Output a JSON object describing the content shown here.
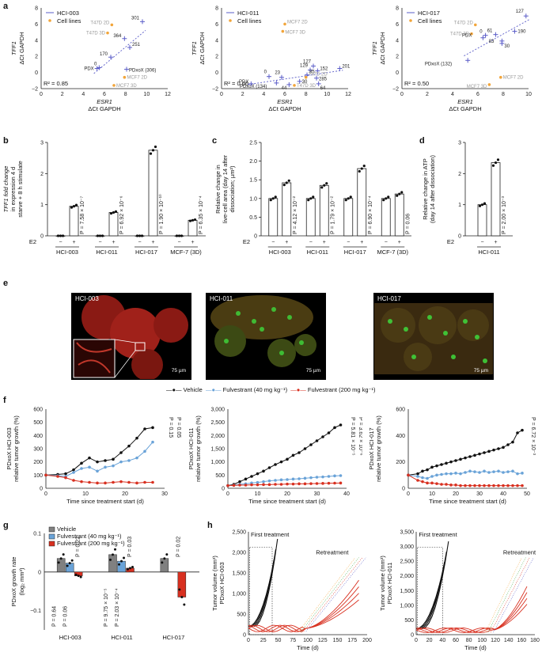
{
  "panels": {
    "a": "a",
    "b": "b",
    "c": "c",
    "d": "d",
    "e": "e",
    "f": "f",
    "g": "g",
    "h": "h"
  },
  "colors": {
    "blue": "#5a5cc8",
    "orange": "#f2a53a",
    "black": "#111111",
    "lightblue": "#6aa3d8",
    "red": "#d83020",
    "grey": "#808080",
    "green_cell": "#3fd03a",
    "red_cell": "#d2322a"
  },
  "panel_a": [
    {
      "legend_series": "HCI-003",
      "legend_cells": "Cell lines",
      "r2": "R² = 0.85",
      "xlabel": "ESR1",
      "xsub": "ΔCt GAPDH",
      "ylabel": "TFF1",
      "ysub": "ΔCt GAPDH",
      "xticks": [
        "0",
        "2",
        "4",
        "6",
        "8",
        "10",
        "12"
      ],
      "yticks": [
        "−2",
        "0",
        "2",
        "4",
        "6",
        "8"
      ],
      "points": [
        {
          "t": "301"
        },
        {
          "t": "364"
        },
        {
          "t": "251"
        },
        {
          "t": "170"
        },
        {
          "t": "0"
        },
        {
          "t": "PDX"
        },
        {
          "t": "PDxoX (306)"
        },
        {
          "t": "T47D 2D"
        },
        {
          "t": "T47D 3D"
        },
        {
          "t": "MCF7 2D"
        },
        {
          "t": "MCF7 3D"
        }
      ]
    },
    {
      "legend_series": "HCI-011",
      "legend_cells": "Cell lines",
      "r2": "R² = 0.66",
      "xlabel": "ESR1",
      "xsub": "ΔCt GAPDH",
      "ylabel": "TFF1",
      "ysub": "ΔCt GAPDH",
      "xticks": [
        "0",
        "2",
        "4",
        "6",
        "8",
        "10",
        "12"
      ],
      "yticks": [
        "−2",
        "0",
        "2",
        "4",
        "6",
        "8"
      ],
      "points": [
        {
          "t": "127"
        },
        {
          "t": "129"
        },
        {
          "t": "152"
        },
        {
          "t": "201"
        },
        {
          "t": "23"
        },
        {
          "t": "0"
        },
        {
          "t": "PDX"
        },
        {
          "t": "PDxoX (134)"
        },
        {
          "t": "30"
        },
        {
          "t": "44"
        },
        {
          "t": "64"
        },
        {
          "t": "285"
        },
        {
          "t": "85"
        },
        {
          "t": "MCF7 2D"
        },
        {
          "t": "MCF7 3D"
        },
        {
          "t": "T47D 2D"
        },
        {
          "t": "T47D 3D"
        }
      ]
    },
    {
      "legend_series": "HCI-017",
      "legend_cells": "Cell lines",
      "r2": "R² = 0.50",
      "xlabel": "ESR1",
      "xsub": "ΔCt GAPDH",
      "ylabel": "TFF1",
      "ysub": "ΔCt GAPDH",
      "xticks": [
        "0",
        "2",
        "4",
        "6",
        "8",
        "10"
      ],
      "yticks": [
        "−2",
        "0",
        "2",
        "4",
        "6",
        "8"
      ],
      "points": [
        {
          "t": "127"
        },
        {
          "t": "190"
        },
        {
          "t": "61"
        },
        {
          "t": "0"
        },
        {
          "t": "PDX"
        },
        {
          "t": "83"
        },
        {
          "t": "30"
        },
        {
          "t": "PDxoX (132)"
        },
        {
          "t": "T47D 2D"
        },
        {
          "t": "T47D 3D"
        },
        {
          "t": "MCF7 2D"
        },
        {
          "t": "MCF7 3D"
        }
      ]
    }
  ],
  "chart_data": [
    {
      "type": "scatter",
      "title": "",
      "series_name": "HCI-003",
      "xlabel": "ESR1 ΔCt GAPDH",
      "ylabel": "TFF1 ΔCt GAPDH",
      "xlim": [
        0,
        12
      ],
      "ylim": [
        -2,
        8
      ],
      "points": [
        [
          9.6,
          6.3
        ],
        [
          7.9,
          4.2
        ],
        [
          8.4,
          3.1
        ],
        [
          6.6,
          1.9
        ],
        [
          5.5,
          0.6
        ],
        [
          5.3,
          0.5
        ],
        [
          8.1,
          0.4
        ]
      ],
      "cell_lines": [
        [
          6.7,
          5.9
        ],
        [
          6.3,
          4.9
        ],
        [
          7.9,
          -0.6
        ],
        [
          6.9,
          -1.6
        ]
      ],
      "r2": 0.85
    },
    {
      "type": "scatter",
      "title": "",
      "series_name": "HCI-011",
      "xlabel": "ESR1 ΔCt GAPDH",
      "ylabel": "TFF1 ΔCt GAPDH",
      "xlim": [
        0,
        12
      ],
      "ylim": [
        -2,
        8
      ],
      "points": [
        [
          8.7,
          0.8
        ],
        [
          8.4,
          0.3
        ],
        [
          9.1,
          0.2
        ],
        [
          11.2,
          0.5
        ],
        [
          5.7,
          -0.6
        ],
        [
          4.5,
          -0.5
        ],
        [
          2.8,
          -1.4
        ],
        [
          5.2,
          -1.3
        ],
        [
          7.4,
          -1.1
        ],
        [
          6.4,
          -1.5
        ],
        [
          9.2,
          -1.4
        ],
        [
          9.0,
          -0.7
        ],
        [
          8.1,
          -0.3
        ]
      ],
      "cell_lines": [
        [
          6.0,
          6.0
        ],
        [
          5.8,
          5.1
        ],
        [
          8.0,
          -0.6
        ],
        [
          6.9,
          -1.6
        ]
      ],
      "r2": 0.66
    },
    {
      "type": "scatter",
      "title": "",
      "series_name": "HCI-017",
      "xlabel": "ESR1 ΔCt GAPDH",
      "ylabel": "TFF1 ΔCt GAPDH",
      "xlim": [
        0,
        10
      ],
      "ylim": [
        -2,
        8
      ],
      "points": [
        [
          9.8,
          7.0
        ],
        [
          8.9,
          5.1
        ],
        [
          7.4,
          4.7
        ],
        [
          6.6,
          4.6
        ],
        [
          6.4,
          4.3
        ],
        [
          7.9,
          3.9
        ],
        [
          7.9,
          3.6
        ],
        [
          5.2,
          1.5
        ]
      ],
      "cell_lines": [
        [
          5.8,
          5.9
        ],
        [
          5.5,
          4.8
        ],
        [
          7.8,
          -0.6
        ],
        [
          6.9,
          -1.5
        ]
      ],
      "r2": 0.5
    },
    {
      "type": "bar",
      "title": "",
      "ylabel": "TFF1 fold change in expression 4 d starve + 8 h stimulate",
      "ylim": [
        0,
        3
      ],
      "yticks": [
        "0",
        "1",
        "2",
        "3"
      ],
      "groups": [
        "HCI-003",
        "HCI-011",
        "HCI-017",
        "MCF-7 (3D)"
      ],
      "e2": [
        "−",
        "+"
      ],
      "values": [
        [
          0,
          0.95
        ],
        [
          0,
          0.75
        ],
        [
          0,
          2.75
        ],
        [
          0,
          0.5
        ]
      ],
      "pvalues": [
        "P = 7.58 × 10⁻⁷",
        "P = 6.92 × 10⁻⁶",
        "P = 1.90 × 10⁻¹⁰",
        "P = 6.35 × 10⁻⁴"
      ]
    },
    {
      "type": "bar",
      "title": "",
      "ylabel": "Relative change in live-cell area (day 14 after dissociation; µm²)",
      "ylim": [
        0,
        2.5
      ],
      "yticks": [
        "0",
        "0.5",
        "1.0",
        "1.5",
        "2.0",
        "2.5"
      ],
      "groups": [
        "HCI-003",
        "HCI-011",
        "HCI-017",
        "MCF-7 (3D)"
      ],
      "e2": [
        "−",
        "+"
      ],
      "values": [
        [
          1.0,
          1.42
        ],
        [
          1.0,
          1.35
        ],
        [
          1.0,
          1.8
        ],
        [
          1.0,
          1.12
        ]
      ],
      "pvalues": [
        "P = 4.12 × 10⁻²",
        "P = 1.79 × 10⁻²",
        "P = 6.90 × 10⁻⁴",
        "P = 0.06"
      ]
    },
    {
      "type": "bar",
      "title": "",
      "ylabel": "Relative change in ATP (day 14 after dissociation)",
      "ylim": [
        0,
        3
      ],
      "yticks": [
        "0",
        "1",
        "2",
        "3"
      ],
      "groups": [
        "HCI-011"
      ],
      "e2": [
        "−",
        "+"
      ],
      "values": [
        [
          1.0,
          2.35
        ]
      ],
      "pvalues": [
        "P = 2.00 × 10⁻³"
      ]
    },
    {
      "type": "line",
      "title": "",
      "ylabel": "PDxoX HCI-003 relative tumor growth (%)",
      "xlabel": "Time since treatment start (d)",
      "xlim": [
        0,
        30
      ],
      "ylim": [
        0,
        600
      ],
      "xticks": [
        "0",
        "10",
        "20",
        "30"
      ],
      "yticks": [
        "0",
        "100",
        "200",
        "300",
        "400",
        "500",
        "600"
      ],
      "x": [
        0,
        3,
        5,
        7,
        9,
        11,
        13,
        15,
        17,
        19,
        21,
        23,
        25,
        27
      ],
      "series": [
        {
          "name": "Vehicle",
          "values": [
            100,
            105,
            110,
            140,
            190,
            230,
            200,
            210,
            220,
            270,
            320,
            380,
            450,
            460
          ]
        },
        {
          "name": "Fulvestrant (40 mg kg⁻¹)",
          "values": [
            100,
            95,
            90,
            120,
            150,
            160,
            130,
            160,
            170,
            200,
            210,
            230,
            280,
            350
          ]
        },
        {
          "name": "Fulvestrant (200 mg kg⁻¹)",
          "values": [
            100,
            90,
            80,
            60,
            50,
            45,
            40,
            40,
            45,
            50,
            45,
            40,
            45,
            45
          ]
        }
      ],
      "pvalues": [
        "P = 0.15",
        "P = 0.05"
      ]
    },
    {
      "type": "line",
      "title": "",
      "ylabel": "PDxoX HCI-011 relative tumor growth (%)",
      "xlabel": "Time since treatment start (d)",
      "xlim": [
        0,
        40
      ],
      "ylim": [
        0,
        3000
      ],
      "xticks": [
        "0",
        "10",
        "20",
        "30",
        "40"
      ],
      "yticks": [
        "0",
        "500",
        "1,000",
        "1,500",
        "2,000",
        "2,500",
        "3,000"
      ],
      "x": [
        0,
        2,
        4,
        6,
        8,
        10,
        12,
        14,
        16,
        18,
        20,
        22,
        24,
        26,
        28,
        30,
        32,
        34,
        36,
        38
      ],
      "series": [
        {
          "name": "Vehicle",
          "values": [
            100,
            150,
            250,
            350,
            450,
            550,
            650,
            780,
            900,
            1000,
            1100,
            1250,
            1350,
            1500,
            1650,
            1800,
            1950,
            2100,
            2300,
            2400
          ]
        },
        {
          "name": "Fulvestrant (40 mg kg⁻¹)",
          "values": [
            100,
            120,
            150,
            170,
            200,
            220,
            250,
            280,
            300,
            320,
            330,
            350,
            360,
            380,
            400,
            420,
            430,
            450,
            470,
            480
          ]
        },
        {
          "name": "Fulvestrant (200 mg kg⁻¹)",
          "values": [
            100,
            110,
            120,
            120,
            130,
            130,
            140,
            140,
            150,
            150,
            160,
            160,
            170,
            170,
            175,
            180,
            185,
            190,
            195,
            200
          ]
        }
      ],
      "pvalues": [
        "P = 5.81 × 10⁻⁵",
        "P = 3.62 × 10⁻⁶"
      ]
    },
    {
      "type": "line",
      "title": "",
      "ylabel": "PDxoX HCI-017 relative tumor growth (%)",
      "xlabel": "Time since treatment start (d)",
      "xlim": [
        0,
        50
      ],
      "ylim": [
        0,
        600
      ],
      "xticks": [
        "0",
        "10",
        "20",
        "30",
        "40",
        "50"
      ],
      "yticks": [
        "0",
        "200",
        "400",
        "600"
      ],
      "x": [
        0,
        4,
        6,
        8,
        10,
        12,
        14,
        16,
        18,
        20,
        22,
        24,
        26,
        28,
        30,
        32,
        34,
        36,
        38,
        40,
        42,
        44,
        46,
        48
      ],
      "series": [
        {
          "name": "Vehicle",
          "values": [
            100,
            110,
            130,
            140,
            160,
            170,
            180,
            190,
            200,
            210,
            220,
            230,
            240,
            250,
            260,
            270,
            280,
            290,
            300,
            310,
            330,
            350,
            420,
            440
          ]
        },
        {
          "name": "Fulvestrant (40 mg kg⁻¹)",
          "values": [
            100,
            90,
            80,
            75,
            90,
            100,
            105,
            110,
            110,
            115,
            110,
            120,
            130,
            125,
            120,
            130,
            120,
            125,
            130,
            120,
            125,
            130,
            110,
            115
          ]
        },
        {
          "name": "Fulvestrant (200 mg kg⁻¹)",
          "values": [
            100,
            60,
            50,
            40,
            40,
            35,
            30,
            30,
            25,
            25,
            20,
            20,
            20,
            20,
            20,
            20,
            20,
            20,
            20,
            20,
            20,
            20,
            20,
            20
          ]
        }
      ],
      "pvalues": [
        "P = 6.72 × 10⁻³"
      ]
    },
    {
      "type": "bar",
      "title": "",
      "ylabel": "PDxoX growth rate (log₂ mm³)",
      "ylim": [
        -0.15,
        0.1
      ],
      "yticks": [
        "−0.1",
        "0",
        "0.1"
      ],
      "groups": [
        "HCI-003",
        "HCI-011",
        "HCI-017"
      ],
      "series": [
        {
          "name": "Vehicle",
          "values": [
            0.035,
            0.045,
            0.035
          ]
        },
        {
          "name": "Fulvestrant (40 mg kg⁻¹)",
          "values": [
            0.023,
            0.028,
            null
          ]
        },
        {
          "name": "Fulvestrant (200 mg kg⁻¹)",
          "values": [
            -0.01,
            0.01,
            -0.065
          ]
        }
      ],
      "pvalues": [
        "P = 0.22",
        "P = 0.03",
        "P = 0.02",
        "P = 0.64",
        "P = 0.06",
        "P = 9.75 × 10⁻⁵",
        "P = 2.03 × 10⁻⁴"
      ]
    },
    {
      "type": "line",
      "title": "",
      "ylabel": "Tumor volume (mm³) PDxoX HCI-003",
      "xlabel": "Time (d)",
      "xlim": [
        0,
        200
      ],
      "ylim": [
        0,
        2500
      ],
      "xticks": [
        "0",
        "25",
        "50",
        "75",
        "100",
        "125",
        "150",
        "175",
        "200"
      ],
      "yticks": [
        "0",
        "500",
        "1,000",
        "1,500",
        "2,000",
        "2,500"
      ],
      "annotations": [
        "First treatment",
        "Retreatment"
      ]
    },
    {
      "type": "line",
      "title": "",
      "ylabel": "Tumor volume (mm³) PDxoX HCI-011",
      "xlabel": "Time (d)",
      "xlim": [
        0,
        180
      ],
      "ylim": [
        0,
        3500
      ],
      "xticks": [
        "0",
        "20",
        "40",
        "60",
        "80",
        "100",
        "120",
        "140",
        "160",
        "180"
      ],
      "yticks": [
        "0",
        "500",
        "1,000",
        "1,500",
        "2,000",
        "2,500",
        "3,000",
        "3,500"
      ],
      "annotations": [
        "First treatment",
        "Retreatment"
      ]
    }
  ],
  "panel_b": {
    "e2": "E2",
    "minus": "−",
    "plus": "+",
    "groups": [
      "HCI-003",
      "HCI-011",
      "HCI-017",
      "MCF-7 (3D)"
    ]
  },
  "panel_e": {
    "titles": [
      "HCI-003",
      "HCI-011",
      "HCI-017"
    ],
    "scale": "75 µm"
  },
  "panel_f": {
    "legend": [
      "Vehicle",
      "Fulvestrant (40 mg kg⁻¹)",
      "Fulvestrant (200 mg kg⁻¹)"
    ]
  },
  "panel_g": {
    "legend": [
      "Vehicle",
      "Fulvestrant (40 mg kg⁻¹)",
      "Fulvestrant (200 mg kg⁻¹)"
    ]
  }
}
